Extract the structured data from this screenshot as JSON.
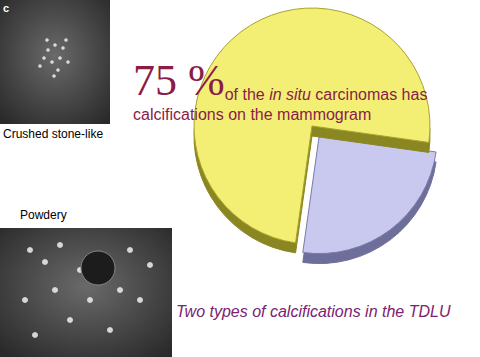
{
  "chart_data": {
    "type": "pie",
    "values": [
      75,
      25
    ],
    "value_labels": [
      "75 %",
      null
    ],
    "colors": [
      "#f3ef74",
      "#c9c9ef"
    ],
    "data_labels": true,
    "annotations": [
      {
        "lines": [
          [
            {
              "text": "of the "
            },
            {
              "text": "in situ",
              "italic": true
            },
            {
              "text": " carcinomas has"
            }
          ],
          [
            {
              "text": "calcifications on the mammogram"
            }
          ]
        ]
      },
      {
        "lines": [
          [
            {
              "text": "Two types of calcifications in the TDLU",
              "italic": true
            }
          ]
        ]
      }
    ],
    "images": [
      {
        "panel_letter": "c",
        "label": "Crushed stone-like"
      },
      {
        "label": "Powdery"
      }
    ]
  }
}
